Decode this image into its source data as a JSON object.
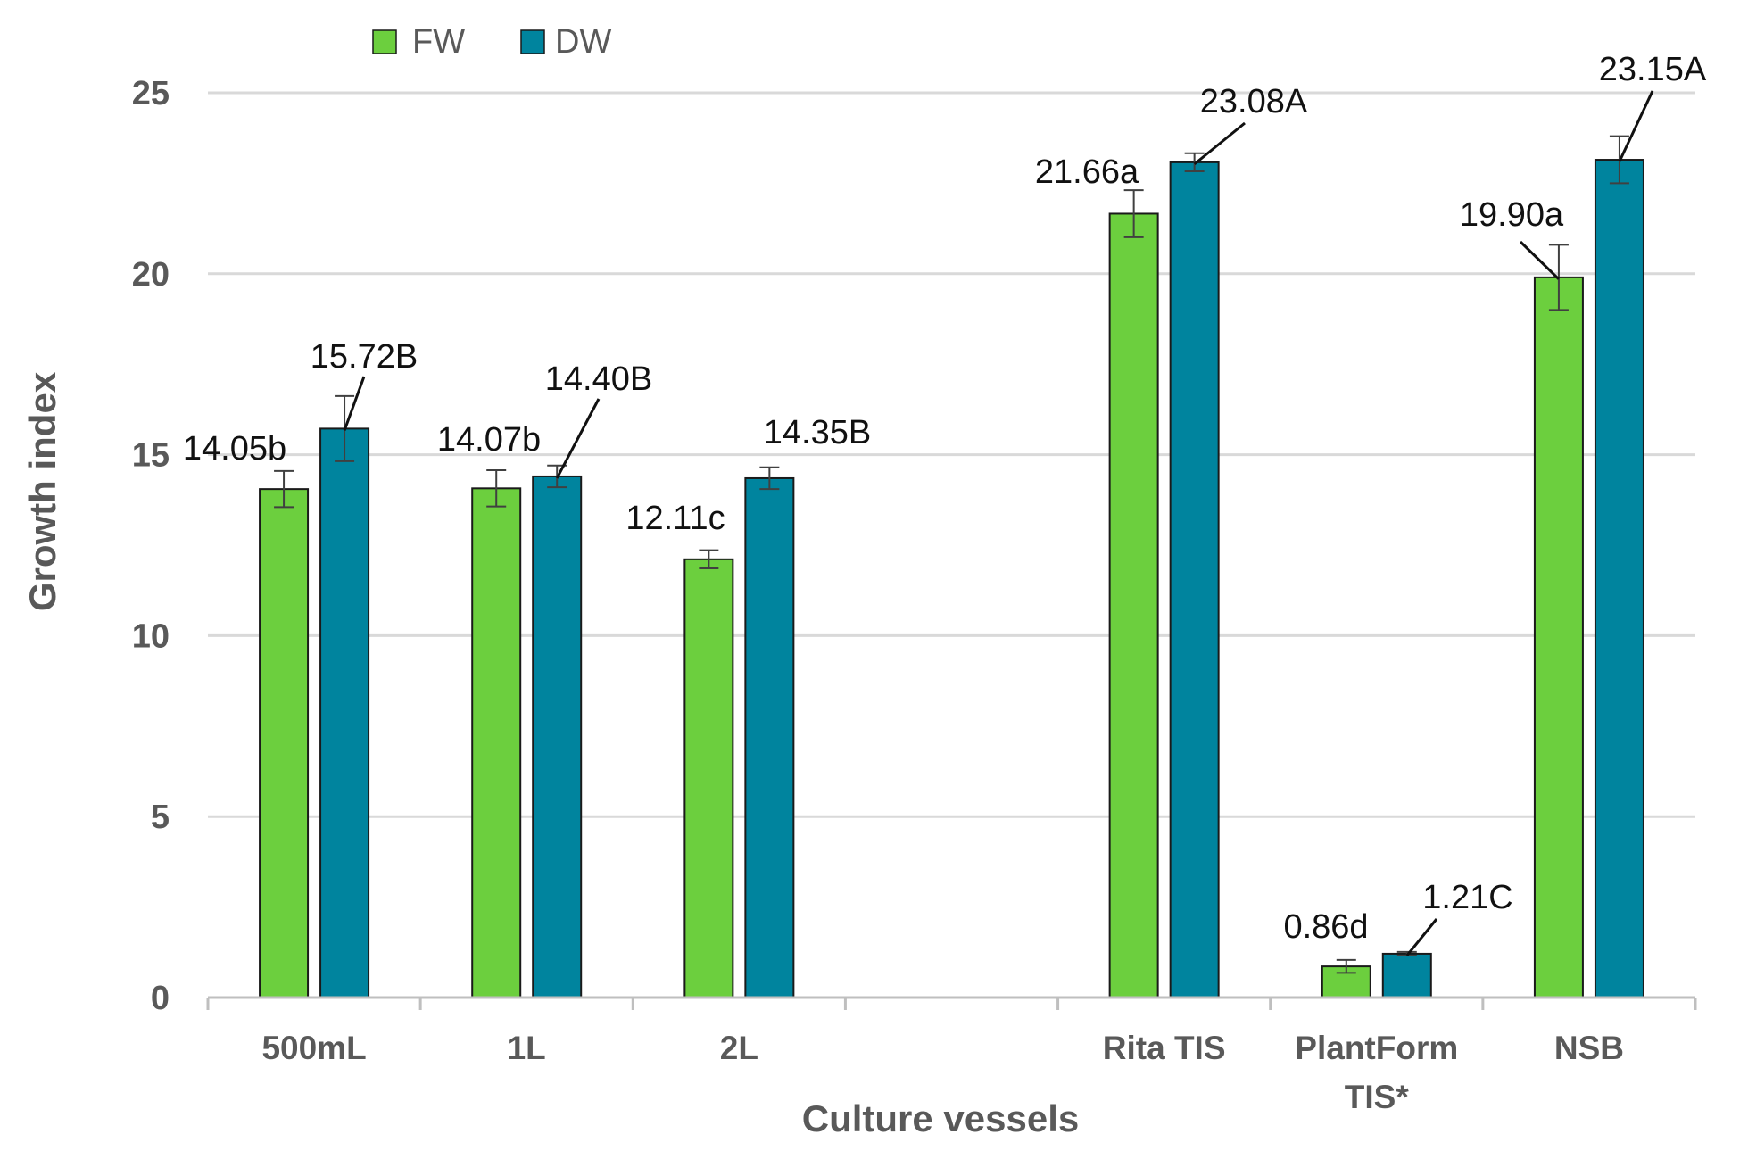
{
  "chart_data": {
    "type": "bar",
    "title": "",
    "xlabel": "Culture vessels",
    "ylabel": "Growth index",
    "ylim": [
      0,
      25
    ],
    "yticks": [
      0,
      5,
      10,
      15,
      20,
      25
    ],
    "grid": true,
    "legend_position": "top-left",
    "categories": [
      "500mL",
      "1L",
      "2L",
      "",
      "Rita TIS",
      "PlantForm TIS*",
      "NSB"
    ],
    "category_lines": [
      [
        "500mL"
      ],
      [
        "1L"
      ],
      [
        "2L"
      ],
      [
        ""
      ],
      [
        "Rita TIS"
      ],
      [
        "PlantForm",
        "TIS*"
      ],
      [
        "NSB"
      ]
    ],
    "series": [
      {
        "name": "FW",
        "color": "#6CCF3E",
        "values": [
          14.05,
          14.07,
          12.11,
          null,
          21.66,
          0.86,
          19.9
        ],
        "errors": [
          0.5,
          0.5,
          0.25,
          null,
          0.65,
          0.18,
          0.9
        ],
        "labels": [
          "14.05b",
          "14.07b",
          "12.11c",
          null,
          "21.66a",
          "0.86d",
          "19.90a"
        ]
      },
      {
        "name": "DW",
        "color": "#00849E",
        "values": [
          15.72,
          14.4,
          14.35,
          null,
          23.08,
          1.21,
          23.15
        ],
        "errors": [
          0.9,
          0.3,
          0.3,
          null,
          0.25,
          0.05,
          0.65
        ],
        "labels": [
          "15.72B",
          "14.40B",
          "14.35B",
          null,
          "23.08A",
          "1.21C",
          "23.15A"
        ]
      }
    ]
  }
}
